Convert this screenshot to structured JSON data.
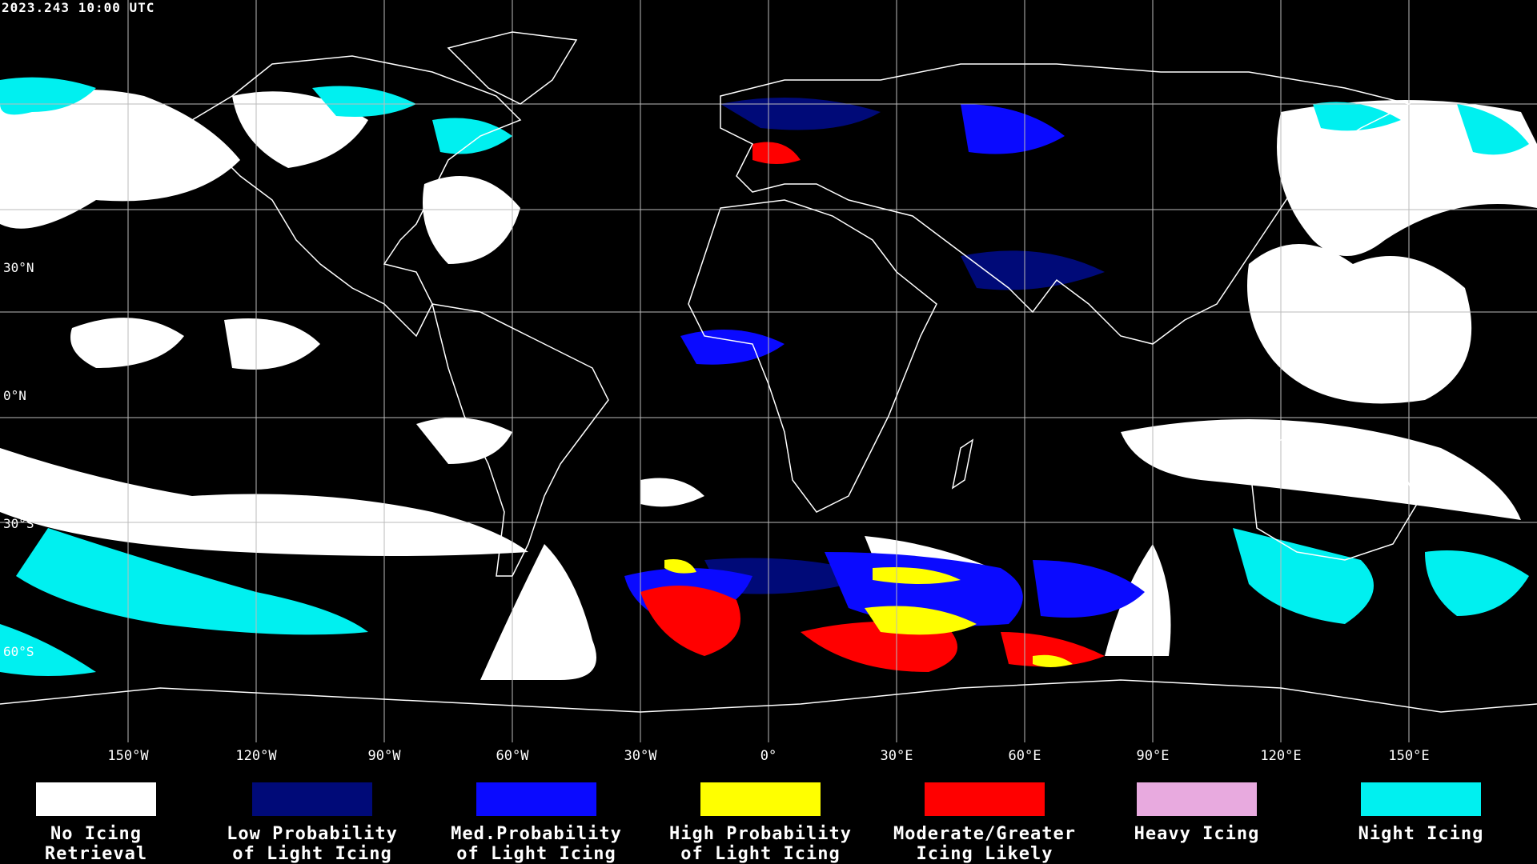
{
  "timestamp": "2023.243 10:00 UTC",
  "latitude_labels": [
    "60°N",
    "30°N",
    "0°N",
    "30°S",
    "60°S"
  ],
  "longitude_labels": [
    "150°W",
    "120°W",
    "90°W",
    "60°W",
    "30°W",
    "0°",
    "30°E",
    "60°E",
    "90°E",
    "120°E",
    "150°E"
  ],
  "legend": [
    {
      "label": "No Icing\nRetrieval",
      "color": "#ffffff"
    },
    {
      "label": "Low Probability\nof Light Icing",
      "color": "#000a78"
    },
    {
      "label": "Med.Probability\nof Light Icing",
      "color": "#0a0aff"
    },
    {
      "label": "High Probability\nof Light Icing",
      "color": "#ffff00"
    },
    {
      "label": "Moderate/Greater\nIcing Likely",
      "color": "#ff0000"
    },
    {
      "label": "Heavy Icing",
      "color": "#e8aadf"
    },
    {
      "label": "Night Icing",
      "color": "#00f0f0"
    }
  ],
  "colors": {
    "background": "#000000",
    "grid": "#bbbbbb",
    "coastline": "#ffffff"
  }
}
